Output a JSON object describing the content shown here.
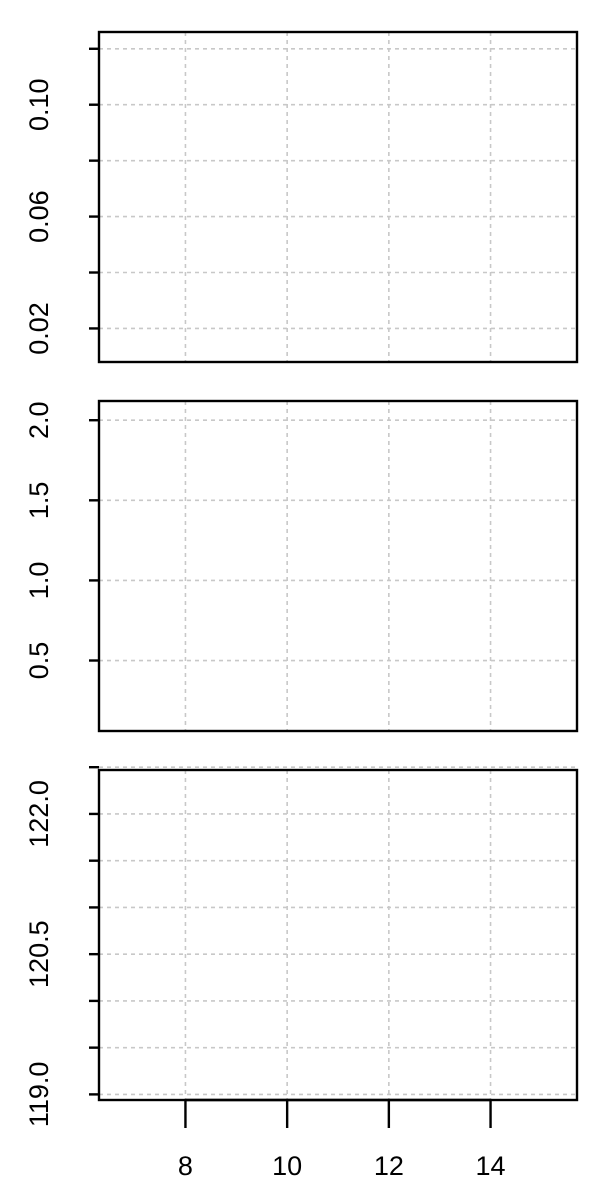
{
  "chart_data": [
    {
      "type": "line",
      "title": "",
      "xlabel": "",
      "ylabel": "",
      "xlim": [
        6.3,
        15.7
      ],
      "ylim": [
        0.008,
        0.126
      ],
      "x_gridlines": [
        8,
        10,
        12,
        14
      ],
      "y_gridlines": [
        0.02,
        0.04,
        0.06,
        0.08,
        0.1,
        0.12
      ],
      "y_ticks": [
        0.02,
        0.04,
        0.06,
        0.08,
        0.1,
        0.12
      ],
      "y_tick_labels": [
        "0.02",
        "0.06",
        "0.10"
      ],
      "grid": true,
      "series": []
    },
    {
      "type": "line",
      "title": "",
      "xlabel": "",
      "ylabel": "",
      "xlim": [
        6.3,
        15.7
      ],
      "ylim": [
        0.06,
        2.12
      ],
      "x_gridlines": [
        8,
        10,
        12,
        14
      ],
      "y_gridlines": [
        0.5,
        1.0,
        1.5,
        2.0
      ],
      "y_ticks": [
        0.5,
        1.0,
        1.5,
        2.0
      ],
      "y_tick_labels": [
        "0.5",
        "1.0",
        "1.5",
        "2.0"
      ],
      "grid": true,
      "series": []
    },
    {
      "type": "line",
      "title": "",
      "xlabel": "",
      "ylabel": "",
      "xlim": [
        6.3,
        15.7
      ],
      "ylim": [
        118.94,
        122.47
      ],
      "x_gridlines": [
        8,
        10,
        12,
        14
      ],
      "x_ticks": [
        8,
        10,
        12,
        14
      ],
      "x_tick_labels": [
        "8",
        "10",
        "12",
        "14"
      ],
      "y_gridlines": [
        119.0,
        119.5,
        120.0,
        120.5,
        121.0,
        121.5,
        122.0,
        122.5
      ],
      "y_ticks": [
        119.0,
        119.5,
        120.0,
        120.5,
        121.0,
        121.5,
        122.0,
        122.5
      ],
      "y_tick_labels": [
        "119.0",
        "120.5",
        "122.0"
      ],
      "grid": true,
      "series": []
    }
  ]
}
